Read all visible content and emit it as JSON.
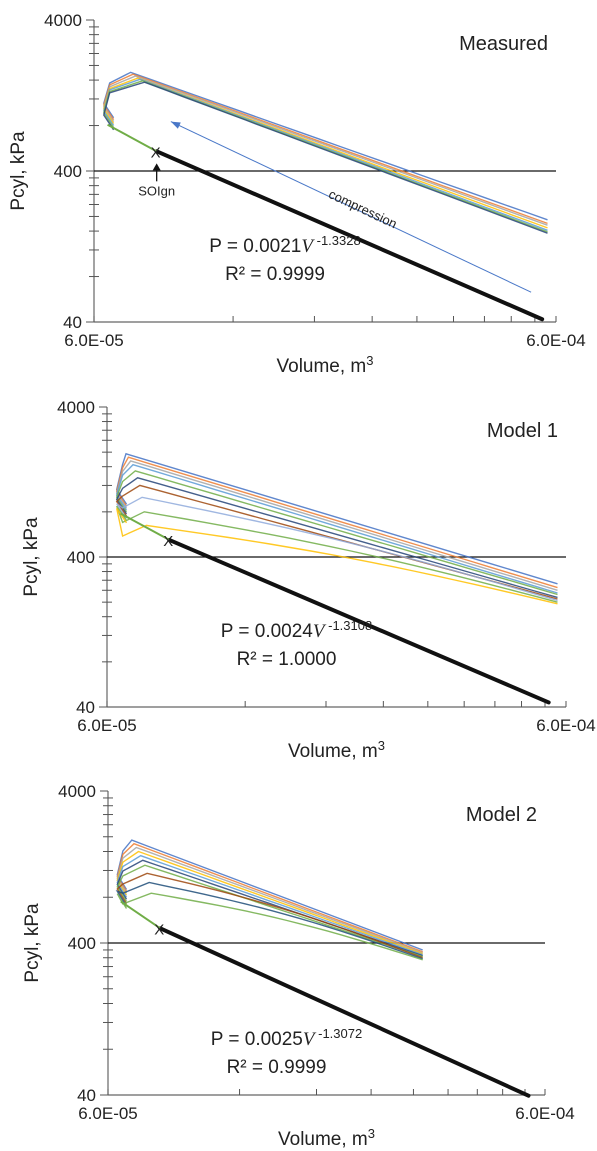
{
  "chart_data": [
    {
      "type": "line",
      "title": "Measured",
      "xlabel": "Volume, m",
      "xlabel_sup": "3",
      "ylabel": "Pcyl,  kPa",
      "xscale": "log",
      "yscale": "log",
      "xlim": [
        6e-05,
        0.0006
      ],
      "ylim": [
        40,
        4000
      ],
      "x_tick_labels": [
        "6.0E-05",
        "6.0E-04"
      ],
      "y_tick_labels": [
        "40",
        "400",
        "4000"
      ],
      "reference_line_y": 400,
      "marker": {
        "label": "SOIgn",
        "symbol": "X",
        "x": 8.2e-05,
        "y": 540
      },
      "compression_label": "compression",
      "compression_arrow": {
        "from_x": 0.00053,
        "from_y": 63,
        "to_x": 8.8e-05,
        "to_y": 850
      },
      "fit": {
        "coefficient": "0.0021",
        "exponent": "-1.3328",
        "r2": "0.9999",
        "equation_prefix": "P = 0.0021",
        "var": "V",
        "r2_label": "R² = 0.9999"
      },
      "fit_line_x_end": 0.00056,
      "cycle_peak_pressure": [
        1800,
        1750,
        1700,
        1650,
        1620,
        1580,
        1550
      ],
      "cycle_peak_volume": 7.2e-05,
      "cycle_end_volume": 0.000575,
      "cycle_end_pressure": [
        190,
        180,
        175,
        168,
        162,
        158,
        155
      ],
      "colors": [
        "#4472c4",
        "#ed7d31",
        "#a5a5a5",
        "#ffc000",
        "#5b9bd5",
        "#70ad47",
        "#264478"
      ]
    },
    {
      "type": "line",
      "title": "Model 1",
      "xlabel": "Volume,  m",
      "xlabel_sup": "3",
      "ylabel": "Pcyl,  kPa",
      "xscale": "log",
      "yscale": "log",
      "xlim": [
        6e-05,
        0.0006
      ],
      "ylim": [
        40,
        4000
      ],
      "x_tick_labels": [
        "6.0E-05",
        "6.0E-04"
      ],
      "y_tick_labels": [
        "40",
        "400",
        "4000"
      ],
      "reference_line_y": 400,
      "marker": {
        "symbol": "X",
        "x": 8.2e-05,
        "y": 520
      },
      "fit": {
        "coefficient": "0.0024",
        "exponent": "-1.3108",
        "r2": "1.0000",
        "equation_prefix": "P = 0.0024",
        "var": "V",
        "r2_label": "R² = 1.0000"
      },
      "fit_line_x_end": 0.00055,
      "cycle_peak_pressure": [
        1950,
        1850,
        1750,
        1650,
        1500,
        1350,
        1200,
        1000,
        800,
        650
      ],
      "cycle_peak_volume": 6.6e-05,
      "cycle_end_volume": 0.000575,
      "cycle_end_pressure": [
        265,
        250,
        240,
        230,
        225,
        215,
        210,
        205,
        200,
        195
      ],
      "colors": [
        "#4472c4",
        "#ed7d31",
        "#a5a5a5",
        "#5b9bd5",
        "#70ad47",
        "#264478",
        "#9e480e",
        "#8faadc",
        "#70ad47",
        "#ffc000"
      ]
    },
    {
      "type": "line",
      "title": "Model 2",
      "xlabel": "Volume,  m",
      "xlabel_sup": "3",
      "ylabel": "Pcyl,  kPa",
      "xscale": "log",
      "yscale": "log",
      "xlim": [
        6e-05,
        0.0006
      ],
      "ylim": [
        40,
        4000
      ],
      "x_tick_labels": [
        "6.0E-05",
        "6.0E-04"
      ],
      "y_tick_labels": [
        "40",
        "400",
        "4000"
      ],
      "reference_line_y": 400,
      "marker": {
        "symbol": "X",
        "x": 7.9e-05,
        "y": 500
      },
      "fit": {
        "coefficient": "0.0025",
        "exponent": "-1.3072",
        "r2": "0.9999",
        "equation_prefix": "P = 0.0025",
        "var": "V",
        "r2_label": "R² = 0.9999"
      },
      "fit_line_x_end": 0.00055,
      "cycle_peak_pressure": [
        1900,
        1800,
        1700,
        1600,
        1500,
        1400,
        1300,
        1150,
        1000,
        850
      ],
      "cycle_peak_volume": 6.8e-05,
      "cycle_end_volume": 0.000315,
      "cycle_end_pressure": [
        360,
        350,
        345,
        340,
        335,
        330,
        325,
        320,
        315,
        310
      ],
      "colors": [
        "#4472c4",
        "#ed7d31",
        "#a5a5a5",
        "#ffc000",
        "#5b9bd5",
        "#264478",
        "#70ad47",
        "#9e480e",
        "#1f4e79",
        "#70ad47"
      ]
    }
  ]
}
